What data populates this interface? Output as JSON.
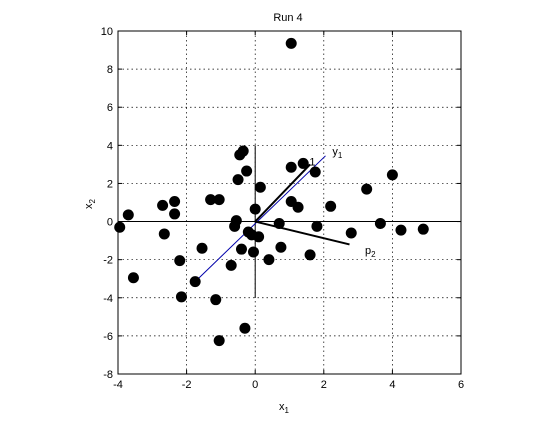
{
  "chart_data": {
    "type": "scatter",
    "title": "Run 4",
    "xlabel": "x",
    "xlabel_sub": "1",
    "ylabel": "x",
    "ylabel_sub": "2",
    "xlim": [
      -4,
      6
    ],
    "ylim": [
      -8,
      10
    ],
    "xticks": [
      -4,
      -2,
      0,
      2,
      4,
      6
    ],
    "yticks": [
      -8,
      -6,
      -4,
      -2,
      0,
      2,
      4,
      6,
      8,
      10
    ],
    "grid": true,
    "marker_color": "#000000",
    "points": [
      [
        1.05,
        9.35
      ],
      [
        -3.95,
        -0.3
      ],
      [
        -3.7,
        0.35
      ],
      [
        -3.55,
        -2.95
      ],
      [
        -2.7,
        0.85
      ],
      [
        -2.65,
        -0.65
      ],
      [
        -2.35,
        0.4
      ],
      [
        -2.35,
        1.05
      ],
      [
        -2.2,
        -2.05
      ],
      [
        -2.15,
        -3.95
      ],
      [
        -1.75,
        -3.15
      ],
      [
        -1.55,
        -1.4
      ],
      [
        -1.3,
        1.15
      ],
      [
        -1.15,
        -4.1
      ],
      [
        -1.05,
        1.15
      ],
      [
        -1.05,
        -6.25
      ],
      [
        -0.7,
        -2.3
      ],
      [
        -0.6,
        -0.25
      ],
      [
        -0.55,
        0.05
      ],
      [
        -0.5,
        2.2
      ],
      [
        -0.45,
        3.5
      ],
      [
        -0.4,
        -1.45
      ],
      [
        -0.35,
        3.7
      ],
      [
        -0.3,
        -5.6
      ],
      [
        -0.25,
        2.65
      ],
      [
        -0.2,
        -0.55
      ],
      [
        -0.1,
        -0.7
      ],
      [
        -0.05,
        -1.6
      ],
      [
        0.0,
        0.65
      ],
      [
        0.1,
        -0.8
      ],
      [
        0.15,
        1.8
      ],
      [
        0.4,
        -2.0
      ],
      [
        0.7,
        -0.1
      ],
      [
        0.75,
        -1.35
      ],
      [
        1.05,
        1.05
      ],
      [
        1.05,
        2.85
      ],
      [
        1.25,
        0.75
      ],
      [
        1.4,
        3.05
      ],
      [
        1.6,
        -1.75
      ],
      [
        1.75,
        2.6
      ],
      [
        1.8,
        -0.25
      ],
      [
        2.2,
        0.8
      ],
      [
        2.8,
        -0.6
      ],
      [
        3.25,
        1.7
      ],
      [
        3.65,
        -0.1
      ],
      [
        4.0,
        2.45
      ],
      [
        4.25,
        -0.45
      ],
      [
        4.9,
        -0.4
      ]
    ],
    "axis_lines": [
      {
        "from": [
          -4,
          0
        ],
        "to": [
          6,
          0
        ]
      },
      {
        "from": [
          0,
          -4
        ],
        "to": [
          0,
          4
        ]
      }
    ],
    "direction_lines": [
      {
        "from": [
          -1.75,
          -3.15
        ],
        "to": [
          2.05,
          3.45
        ],
        "color": "#0000aa"
      }
    ],
    "vectors": [
      {
        "from": [
          0,
          0
        ],
        "to": [
          1.6,
          3.0
        ]
      },
      {
        "from": [
          0,
          0
        ],
        "to": [
          2.75,
          -1.2
        ]
      }
    ],
    "annotations": [
      {
        "text": "y",
        "sub": "1",
        "at": [
          2.25,
          3.5
        ]
      },
      {
        "text": "p",
        "sub": "2",
        "at": [
          3.2,
          -1.7
        ]
      },
      {
        "text": "1",
        "sub": "",
        "at": [
          1.58,
          2.95
        ]
      }
    ]
  }
}
